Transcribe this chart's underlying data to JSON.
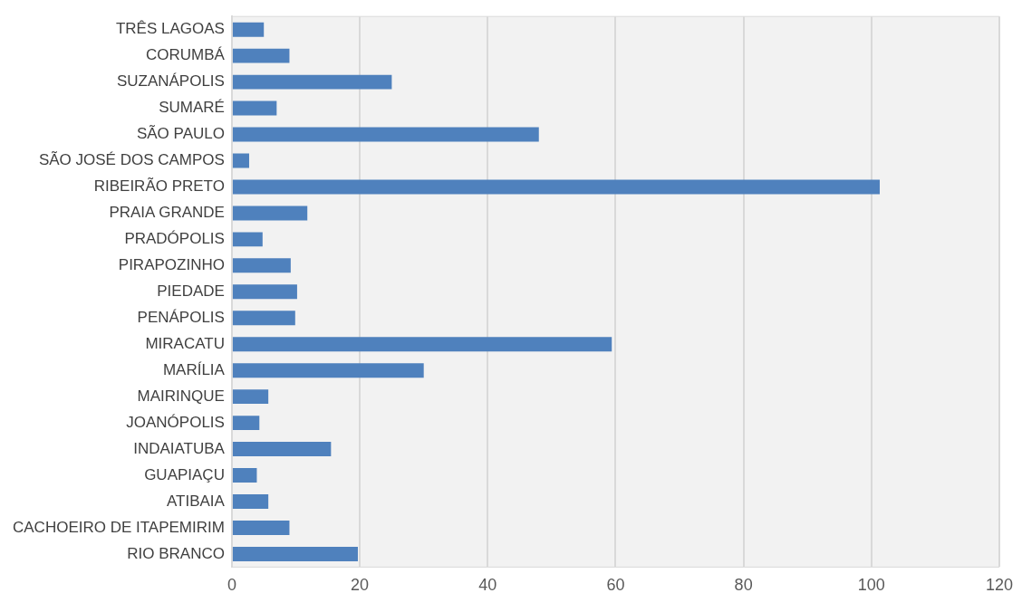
{
  "chart_data": {
    "type": "bar",
    "orientation": "horizontal",
    "categories": [
      "TRÊS LAGOAS",
      "CORUMBÁ",
      "SUZANÁPOLIS",
      "SUMARÉ",
      "SÃO PAULO",
      "SÃO JOSÉ DOS CAMPOS",
      "RIBEIRÃO PRETO",
      "PRAIA GRANDE",
      "PRADÓPOLIS",
      "PIRAPOZINHO",
      "PIEDADE",
      "PENÁPOLIS",
      "MIRACATU",
      "MARÍLIA",
      "MAIRINQUE",
      "JOANÓPOLIS",
      "INDAIATUBA",
      "GUAPIAÇU",
      "ATIBAIA",
      "CACHOEIRO DE ITAPEMIRIM",
      "RIO BRANCO"
    ],
    "values": [
      5,
      9,
      25,
      7,
      48,
      2.7,
      101.3,
      11.8,
      4.8,
      9.2,
      10.2,
      9.9,
      59.4,
      30,
      5.7,
      4.3,
      15.5,
      3.9,
      5.7,
      9,
      19.7
    ],
    "color": "#4f81bd",
    "xlim": [
      0,
      120
    ],
    "xticks": [
      0,
      20,
      40,
      60,
      80,
      100,
      120
    ],
    "grid": "x",
    "legend": false
  }
}
